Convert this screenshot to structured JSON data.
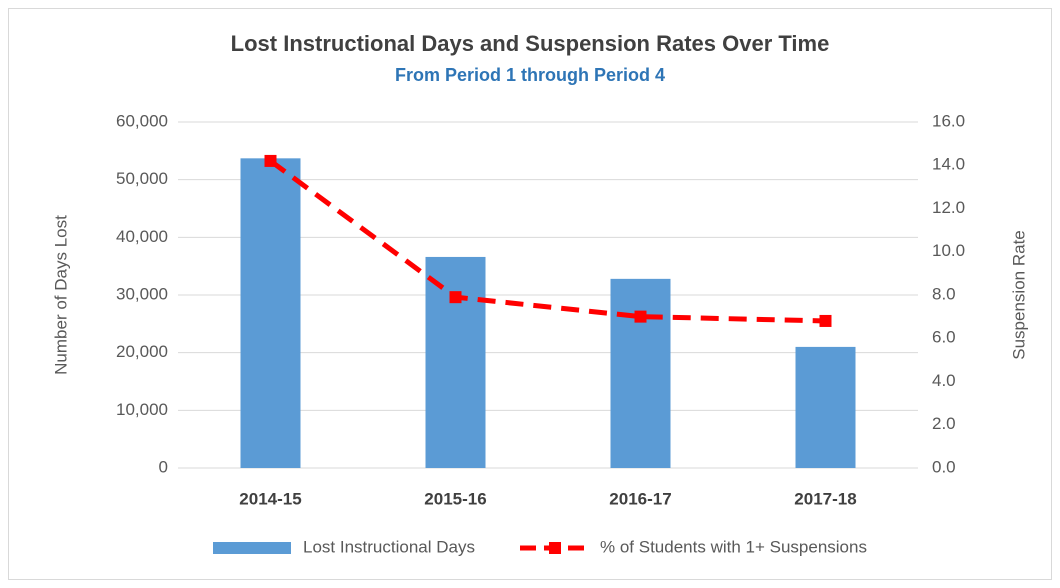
{
  "chart_data": {
    "type": "bar",
    "title": "Lost Instructional Days and Suspension Rates Over Time",
    "subtitle": "From Period 1 through Period 4",
    "y_label": "Number of Days Lost",
    "y2_label": "Suspension Rate",
    "categories": [
      "2014-15",
      "2015-16",
      "2016-17",
      "2017-18"
    ],
    "series": [
      {
        "name": "Lost Instructional Days",
        "type": "bar",
        "color": "#5b9bd5",
        "values": [
          53700,
          36600,
          32800,
          21000
        ]
      },
      {
        "name": "% of Students with 1+ Suspensions",
        "type": "line",
        "color": "#ff0000",
        "axis": "y2",
        "values": [
          14.2,
          7.9,
          7.0,
          6.8
        ]
      }
    ],
    "ylim": [
      0,
      60000
    ],
    "yticks": [
      0,
      {
        "value": 10000,
        "label": "10,000"
      },
      {
        "value": 20000,
        "label": "20,000"
      },
      {
        "value": 30000,
        "label": "30,000"
      },
      {
        "value": 40000,
        "label": "40,000"
      },
      {
        "value": 50000,
        "label": "50,000"
      },
      {
        "value": 60000,
        "label": "60,000"
      }
    ],
    "y2lim": [
      0,
      16
    ],
    "y2ticks": [
      {
        "value": 0,
        "label": "0.0"
      },
      {
        "value": 2,
        "label": "2.0"
      },
      {
        "value": 4,
        "label": "4.0"
      },
      {
        "value": 6,
        "label": "6.0"
      },
      {
        "value": 8,
        "label": "8.0"
      },
      {
        "value": 10,
        "label": "10.0"
      },
      {
        "value": 12,
        "label": "12.0"
      },
      {
        "value": 14,
        "label": "14.0"
      },
      {
        "value": 16,
        "label": "16.0"
      }
    ],
    "grid": true,
    "legend": "bottom"
  }
}
